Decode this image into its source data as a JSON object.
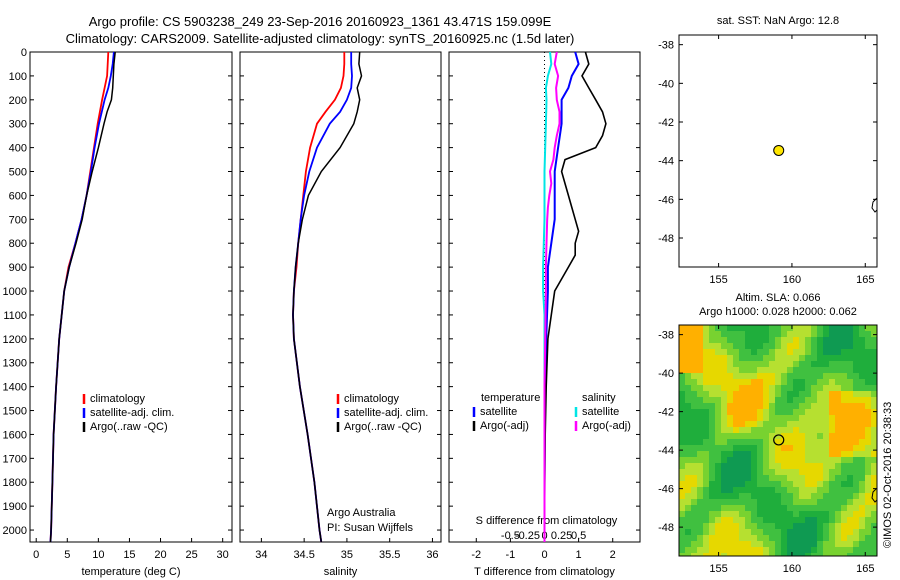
{
  "header": {
    "line1": "Argo profile: CS 5903238_249 23-Sep-2016 20160923_1361 43.471S 159.099E",
    "line2": "Climatology: CARS2009. Satellite-adjusted climatology: synTS_20160925.nc (1.5d later)"
  },
  "colors": {
    "climatology": "#ff0000",
    "satellite": "#0000ff",
    "argo": "#000000",
    "sal_satellite": "#00e5e5",
    "sal_argo": "#ff00ff",
    "marker": "#ffe600"
  },
  "depth_axis": {
    "ticks": [
      0,
      100,
      200,
      300,
      400,
      500,
      600,
      700,
      800,
      900,
      1000,
      1100,
      1200,
      1300,
      1400,
      1500,
      1600,
      1700,
      1800,
      1900,
      2000
    ],
    "range": [
      0,
      2050
    ]
  },
  "chart_data": [
    {
      "type": "line",
      "name": "temperature-profile",
      "xlabel": "temperature (deg C)",
      "xlim": [
        -1,
        31.5
      ],
      "xticks": [
        0,
        5,
        10,
        15,
        20,
        25,
        30
      ],
      "ylim": [
        0,
        2050
      ],
      "legend": [
        "climatology",
        "satellite-adj. clim.",
        "Argo(..raw -QC)"
      ],
      "legend_placement": "lower-right",
      "series": [
        {
          "name": "climatology",
          "depth": [
            0,
            50,
            100,
            150,
            200,
            300,
            400,
            500,
            600,
            700,
            800,
            900,
            1000,
            1200,
            1400,
            1600,
            1800,
            2000,
            2050
          ],
          "values": [
            11.6,
            11.5,
            11.4,
            11.0,
            10.6,
            9.9,
            9.3,
            8.7,
            8.1,
            7.3,
            6.3,
            5.2,
            4.5,
            3.7,
            3.2,
            2.8,
            2.6,
            2.4,
            2.3
          ]
        },
        {
          "name": "satellite-adj. clim.",
          "depth": [
            0,
            50,
            100,
            150,
            200,
            300,
            400,
            500,
            600,
            700,
            800,
            900,
            1000,
            1200,
            1400,
            1600,
            1800,
            2000,
            2050
          ],
          "values": [
            12.5,
            12.3,
            12.0,
            11.6,
            11.0,
            10.1,
            9.4,
            8.8,
            8.1,
            7.3,
            6.3,
            5.3,
            4.5,
            3.7,
            3.2,
            2.8,
            2.6,
            2.4,
            2.3
          ]
        },
        {
          "name": "Argo(..raw -QC)",
          "depth": [
            0,
            50,
            100,
            150,
            200,
            250,
            300,
            400,
            500,
            600,
            700,
            800,
            900,
            1000,
            1200,
            1400,
            1600,
            1800,
            2000,
            2050
          ],
          "values": [
            12.7,
            12.5,
            12.4,
            12.3,
            12.1,
            11.4,
            10.9,
            10.0,
            9.0,
            8.1,
            7.4,
            6.4,
            5.3,
            4.5,
            3.7,
            3.2,
            2.8,
            2.6,
            2.4,
            2.3
          ]
        }
      ]
    },
    {
      "type": "line",
      "name": "salinity-profile",
      "xlabel": "salinity",
      "xlim": [
        33.75,
        36.1
      ],
      "xticks": [
        34,
        34.5,
        35,
        35.5,
        36
      ],
      "xtick_labels": [
        "34",
        "34.5",
        "35",
        "35.5",
        "36"
      ],
      "ylim": [
        0,
        2050
      ],
      "legend": [
        "climatology",
        "satellite-adj. clim.",
        "Argo(..raw -QC)"
      ],
      "legend_placement": "lower-right",
      "annotation": [
        "Argo Australia",
        "PI: Susan Wijffels"
      ],
      "series": [
        {
          "name": "climatology",
          "depth": [
            0,
            50,
            100,
            150,
            200,
            250,
            300,
            400,
            500,
            600,
            700,
            800,
            900,
            1000,
            1100,
            1200,
            1400,
            1600,
            1800,
            2000,
            2050
          ],
          "values": [
            34.97,
            34.97,
            34.96,
            34.93,
            34.86,
            34.75,
            34.65,
            34.57,
            34.52,
            34.49,
            34.46,
            34.43,
            34.41,
            34.38,
            34.37,
            34.38,
            34.45,
            34.54,
            34.62,
            34.68,
            34.7
          ]
        },
        {
          "name": "satellite-adj. clim.",
          "depth": [
            0,
            50,
            100,
            150,
            200,
            250,
            300,
            400,
            500,
            600,
            700,
            800,
            900,
            1000,
            1100,
            1200,
            1400,
            1600,
            1800,
            2000,
            2050
          ],
          "values": [
            35.05,
            35.05,
            35.06,
            35.05,
            35.0,
            34.92,
            34.8,
            34.65,
            34.56,
            34.5,
            34.46,
            34.43,
            34.4,
            34.38,
            34.37,
            34.38,
            34.45,
            34.54,
            34.62,
            34.68,
            34.7
          ]
        },
        {
          "name": "Argo(..raw -QC)",
          "depth": [
            0,
            50,
            100,
            150,
            200,
            250,
            300,
            400,
            500,
            600,
            700,
            800,
            900,
            1000,
            1100,
            1200,
            1400,
            1600,
            1800,
            2000,
            2050
          ],
          "values": [
            35.15,
            35.14,
            35.17,
            35.12,
            35.15,
            35.12,
            35.08,
            34.92,
            34.7,
            34.55,
            34.48,
            34.43,
            34.4,
            34.38,
            34.37,
            34.38,
            34.45,
            34.54,
            34.62,
            34.68,
            34.7
          ]
        }
      ]
    },
    {
      "type": "line",
      "name": "difference-profile",
      "xlabel": "T difference from climatology",
      "top_xlabel": "S difference from climatology",
      "xlim": [
        -2.8,
        2.8
      ],
      "xticks": [
        -2,
        -1,
        0,
        1,
        2
      ],
      "top_xticks": [
        -0.5,
        -0.25,
        0,
        0.25,
        0.5
      ],
      "top_xtick_labels": [
        "-0.5",
        "-0.25",
        "0",
        "0.25",
        "0.5"
      ],
      "ylim": [
        0,
        2050
      ],
      "legend_temperature_title": "temperature",
      "legend_salinity_title": "salinity",
      "legend_satellite": "satellite",
      "legend_argo": "Argo(-adj)",
      "series": [
        {
          "name": "T satellite",
          "depth": [
            0,
            50,
            100,
            150,
            200,
            300,
            400,
            500,
            600,
            700,
            800,
            900,
            1000,
            1200,
            1400,
            1600,
            1800,
            2000,
            2050
          ],
          "values": [
            0.9,
            1.0,
            0.8,
            0.7,
            0.5,
            0.5,
            0.4,
            0.3,
            0.3,
            0.3,
            0.2,
            0.1,
            0.1,
            0.05,
            0.02,
            0.01,
            0,
            0,
            0
          ]
        },
        {
          "name": "T Argo(-adj)",
          "depth": [
            0,
            50,
            100,
            150,
            200,
            250,
            300,
            350,
            400,
            450,
            500,
            550,
            600,
            650,
            700,
            750,
            800,
            850,
            900,
            1000,
            1200,
            1400,
            1600,
            1800,
            2000,
            2050
          ],
          "values": [
            1.2,
            1.3,
            1.1,
            1.3,
            1.5,
            1.7,
            1.8,
            1.7,
            1.5,
            0.6,
            0.5,
            0.6,
            0.7,
            0.8,
            0.9,
            1.0,
            0.9,
            0.9,
            0.7,
            0.3,
            0.1,
            0.05,
            0.02,
            0.01,
            0,
            0
          ]
        },
        {
          "name": "S satellite",
          "depth": [
            0,
            50,
            100,
            150,
            200,
            300,
            400,
            500,
            600,
            700,
            800,
            900,
            1000,
            1100,
            1200,
            1400,
            1600,
            1800,
            2000,
            2050
          ],
          "values": [
            0.08,
            0.1,
            0.05,
            0.02,
            0.03,
            0.02,
            0.01,
            0,
            0,
            0,
            -0.01,
            -0.02,
            -0.02,
            0,
            0,
            0,
            0,
            0,
            0,
            0
          ]
        },
        {
          "name": "S Argo(-adj)",
          "depth": [
            0,
            50,
            100,
            150,
            200,
            250,
            300,
            350,
            400,
            450,
            500,
            550,
            600,
            650,
            700,
            800,
            900,
            1000,
            1200,
            1400,
            1600,
            1800,
            2000,
            2050
          ],
          "values": [
            0.18,
            0.15,
            0.2,
            0.17,
            0.18,
            0.22,
            0.22,
            0.18,
            0.15,
            0.13,
            0.08,
            0.1,
            0.07,
            0.05,
            0.04,
            0.03,
            0.02,
            0.02,
            0.01,
            0,
            0,
            0,
            0,
            0
          ]
        }
      ]
    },
    {
      "type": "scatter",
      "name": "sst-map",
      "title": "sat. SST: NaN Argo: 12.8",
      "xlim": [
        152.3,
        165.8
      ],
      "ylim": [
        -49.5,
        -37.5
      ],
      "xticks": [
        155,
        160,
        165
      ],
      "yticks": [
        -38,
        -40,
        -42,
        -44,
        -46,
        -48
      ],
      "points": [
        {
          "x": 159.099,
          "y": -43.471
        }
      ]
    },
    {
      "type": "heatmap",
      "name": "sla-map",
      "title_line1": "Altim. SLA: 0.066",
      "title_line2": "Argo h1000: 0.028 h2000: 0.062",
      "xlim": [
        152.3,
        165.8
      ],
      "ylim": [
        -49.5,
        -37.5
      ],
      "xticks": [
        155,
        160,
        165
      ],
      "yticks": [
        -38,
        -40,
        -42,
        -44,
        -46,
        -48
      ],
      "points": [
        {
          "x": 159.099,
          "y": -43.471
        }
      ]
    }
  ],
  "side_label": "©IMOS 02-Oct-2016 20:38:33"
}
